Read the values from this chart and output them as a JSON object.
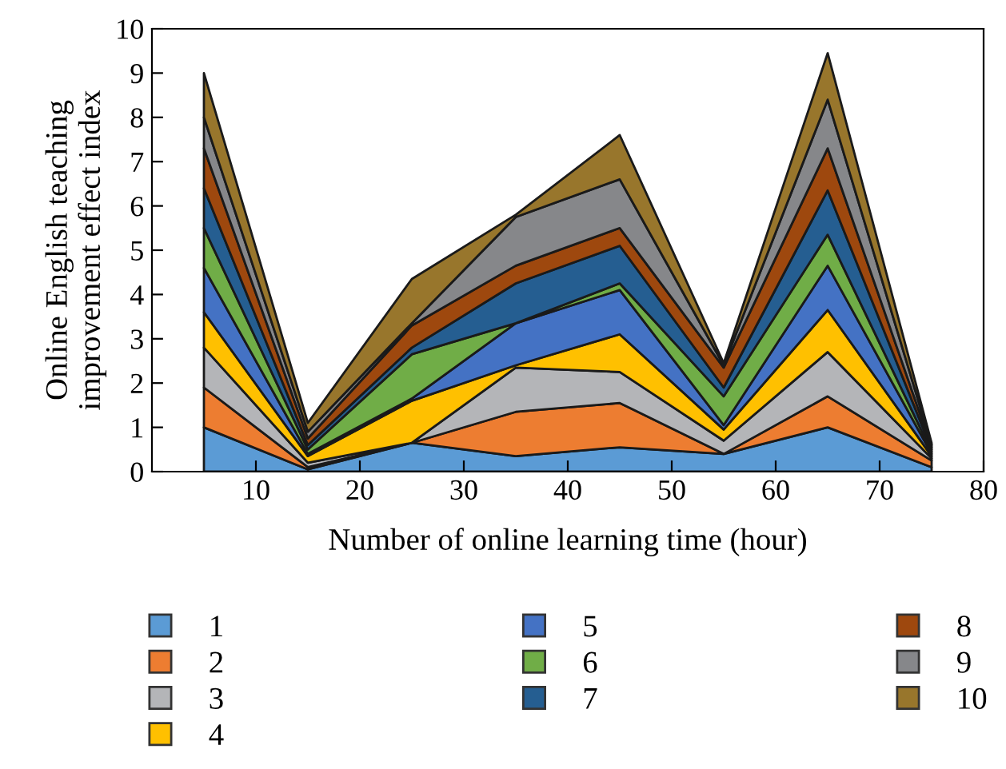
{
  "chart_data": {
    "type": "area",
    "stacked": true,
    "xlabel": "Number of online learning time (hour)",
    "ylabel": "Online English teaching\nimprovement effect index",
    "x": [
      5,
      15,
      25,
      35,
      45,
      55,
      65,
      75
    ],
    "series": [
      {
        "name": "1",
        "color": "#5b9bd5",
        "values": [
          1.0,
          0.05,
          0.65,
          0.35,
          0.55,
          0.4,
          1.0,
          0.1
        ]
      },
      {
        "name": "2",
        "color": "#ed7d31",
        "values": [
          0.9,
          0.05,
          0.0,
          1.0,
          1.0,
          0.0,
          0.7,
          0.15
        ]
      },
      {
        "name": "3",
        "color": "#b4b5b8",
        "values": [
          0.9,
          0.1,
          0.0,
          1.0,
          0.7,
          0.3,
          1.0,
          0.05
        ]
      },
      {
        "name": "4",
        "color": "#ffc000",
        "values": [
          0.8,
          0.15,
          0.95,
          0.05,
          0.85,
          0.25,
          0.95,
          0.05
        ]
      },
      {
        "name": "5",
        "color": "#4472c4",
        "values": [
          1.0,
          0.05,
          0.05,
          0.95,
          1.0,
          0.1,
          1.0,
          0.05
        ]
      },
      {
        "name": "6",
        "color": "#70ad47",
        "values": [
          0.9,
          0.1,
          1.0,
          0.0,
          0.15,
          0.65,
          0.7,
          0.05
        ]
      },
      {
        "name": "7",
        "color": "#255e91",
        "values": [
          0.9,
          0.1,
          0.15,
          0.9,
          0.85,
          0.2,
          1.0,
          0.05
        ]
      },
      {
        "name": "8",
        "color": "#9e480e",
        "values": [
          0.9,
          0.15,
          0.5,
          0.4,
          0.4,
          0.45,
          0.95,
          0.05
        ]
      },
      {
        "name": "9",
        "color": "#86878a",
        "values": [
          0.7,
          0.15,
          0.05,
          1.1,
          1.1,
          0.05,
          1.1,
          0.05
        ]
      },
      {
        "name": "10",
        "color": "#98762c",
        "values": [
          1.0,
          0.2,
          1.0,
          0.05,
          1.0,
          0.05,
          1.05,
          0.05
        ]
      }
    ],
    "xlim": [
      0,
      80
    ],
    "xticks": [
      10,
      20,
      30,
      40,
      50,
      60,
      70,
      80
    ],
    "ylim": [
      0,
      10
    ],
    "yticks": [
      0,
      1,
      2,
      3,
      4,
      5,
      6,
      7,
      8,
      9,
      10
    ],
    "grid": false,
    "legend": "bottom"
  }
}
